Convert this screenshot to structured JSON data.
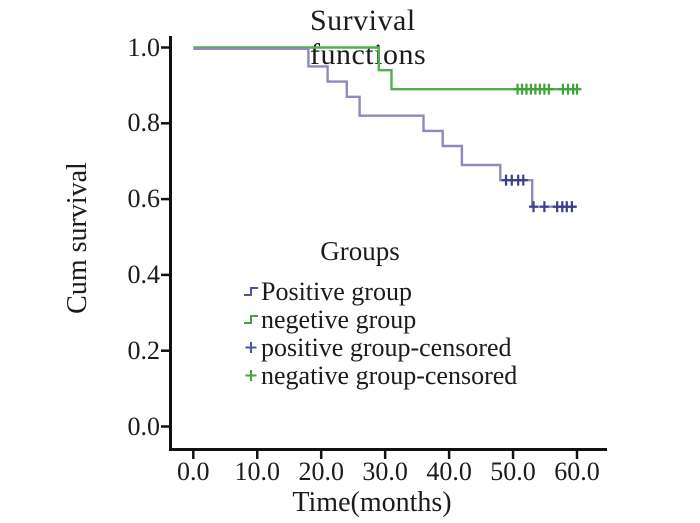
{
  "title": "Survival functions",
  "axes": {
    "y_label": "Cum survival",
    "x_label": "Time(months)",
    "y_ticks": [
      "1.0",
      "0.8",
      "0.6",
      "0.4",
      "0.2",
      "0.0"
    ],
    "x_ticks": [
      "0.0",
      "10.0",
      "20.0",
      "30.0",
      "40.0",
      "50.0",
      "60.0"
    ]
  },
  "legend": {
    "title": "Groups",
    "items": [
      {
        "label": "Positive group",
        "symbol": "step-icon",
        "color": "#4a55a8"
      },
      {
        "label": "negetive group",
        "symbol": "step-icon",
        "color": "#43a047"
      },
      {
        "label": "positive group-censored",
        "symbol": "plus-icon",
        "color": "#4a55a8"
      },
      {
        "label": "negative group-censored",
        "symbol": "plus-icon",
        "color": "#43a047"
      }
    ]
  },
  "colors": {
    "axis": "#111111",
    "text": "#1b1b1b",
    "positive_curve": "#8f89bd",
    "positive_censor": "#3c3f90",
    "negative_curve": "#4fb04c",
    "negative_censor": "#3fa33c",
    "background": "#ffffff"
  },
  "chart_data": {
    "type": "line",
    "subtype": "kaplan-meier-step",
    "title": "Survival functions",
    "xlabel": "Time(months)",
    "ylabel": "Cum survival",
    "xlim": [
      0,
      62
    ],
    "ylim": [
      0.0,
      1.0
    ],
    "x_tick_values": [
      0,
      10,
      20,
      30,
      40,
      50,
      60
    ],
    "y_tick_values": [
      1.0,
      0.8,
      0.6,
      0.4,
      0.2,
      0.0
    ],
    "grid": false,
    "legend_position": "center-left inside plot",
    "series": [
      {
        "name": "negetive group",
        "color": "#4fb04c",
        "censor_color": "#3fa33c",
        "step_times": [
          0,
          29,
          31
        ],
        "survival": [
          1.0,
          0.94,
          0.89
        ],
        "end_time": 60,
        "censored": [
          {
            "t": 50.7,
            "s": 0.89
          },
          {
            "t": 51.4,
            "s": 0.89
          },
          {
            "t": 52.1,
            "s": 0.89
          },
          {
            "t": 52.8,
            "s": 0.89
          },
          {
            "t": 53.5,
            "s": 0.89
          },
          {
            "t": 54.2,
            "s": 0.89
          },
          {
            "t": 54.9,
            "s": 0.89
          },
          {
            "t": 55.6,
            "s": 0.89
          },
          {
            "t": 57.8,
            "s": 0.89
          },
          {
            "t": 58.6,
            "s": 0.89
          },
          {
            "t": 59.4,
            "s": 0.89
          },
          {
            "t": 60.0,
            "s": 0.89
          }
        ]
      },
      {
        "name": "Positive group",
        "color": "#8f89bd",
        "censor_color": "#3c3f90",
        "step_times": [
          0,
          18,
          21,
          24,
          26,
          36,
          39,
          42,
          48,
          53
        ],
        "survival": [
          1.0,
          0.95,
          0.91,
          0.87,
          0.82,
          0.78,
          0.74,
          0.69,
          0.65,
          0.58
        ],
        "end_time": 60,
        "censored": [
          {
            "t": 48.9,
            "s": 0.65
          },
          {
            "t": 49.8,
            "s": 0.65
          },
          {
            "t": 50.8,
            "s": 0.65
          },
          {
            "t": 51.6,
            "s": 0.65
          },
          {
            "t": 53.2,
            "s": 0.58
          },
          {
            "t": 54.9,
            "s": 0.58
          },
          {
            "t": 56.9,
            "s": 0.58
          },
          {
            "t": 57.7,
            "s": 0.58
          },
          {
            "t": 58.4,
            "s": 0.58
          },
          {
            "t": 59.2,
            "s": 0.58
          }
        ]
      }
    ]
  }
}
